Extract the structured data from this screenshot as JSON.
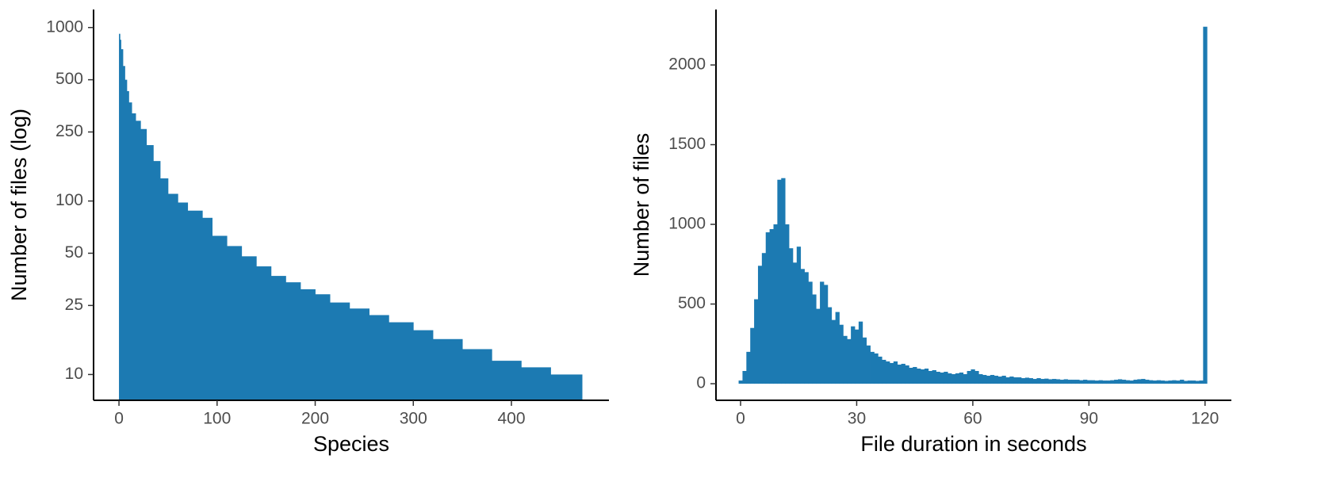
{
  "chart_data": [
    {
      "type": "histogram",
      "xlabel": "Species",
      "ylabel": "Number of files (log)",
      "color": "#1c7ab2",
      "log_y": true,
      "bins": [
        0,
        1,
        2,
        4,
        6,
        8,
        10,
        13,
        17,
        22,
        28,
        35,
        42,
        50,
        60,
        70,
        85,
        95,
        110,
        125,
        140,
        155,
        170,
        185,
        200,
        215,
        235,
        255,
        275,
        300,
        320,
        350,
        380,
        410,
        440,
        472
      ],
      "values": [
        920,
        850,
        750,
        600,
        500,
        430,
        370,
        320,
        290,
        260,
        210,
        170,
        135,
        110,
        98,
        88,
        80,
        63,
        55,
        48,
        42,
        37,
        34,
        31,
        29,
        26,
        24,
        22,
        20,
        18,
        16,
        14,
        12,
        11,
        10
      ],
      "xlim": [
        -25.9,
        499.4
      ],
      "xticks": [
        0,
        100,
        200,
        300,
        400
      ],
      "ylim": [
        7.1,
        1270
      ],
      "yticks": [
        10,
        25,
        50,
        100,
        250,
        500,
        1000
      ]
    },
    {
      "type": "histogram",
      "xlabel": "File duration in seconds",
      "ylabel": "Number of files",
      "color": "#1c7ab2",
      "log_y": false,
      "bins": [
        -0.5,
        0.5,
        1.5,
        2.5,
        3.5,
        4.5,
        5.5,
        6.5,
        7.5,
        8.5,
        9.5,
        10.5,
        11.5,
        12.5,
        13.5,
        14.5,
        15.5,
        16.5,
        17.5,
        18.5,
        19.5,
        20.5,
        21.5,
        22.5,
        23.5,
        24.5,
        25.5,
        26.5,
        27.5,
        28.5,
        29.5,
        30.5,
        31.5,
        32.5,
        33.5,
        34.5,
        35.5,
        36.5,
        37.5,
        38.5,
        39.5,
        40.5,
        41.5,
        42.5,
        43.5,
        44.5,
        45.5,
        46.5,
        47.5,
        48.5,
        49.5,
        50.5,
        51.5,
        52.5,
        53.5,
        54.5,
        55.5,
        56.5,
        57.5,
        58.5,
        59.5,
        60.5,
        61.5,
        62.5,
        63.5,
        64.5,
        65.5,
        66.5,
        67.5,
        68.5,
        69.5,
        70.5,
        71.5,
        72.5,
        73.5,
        74.5,
        75.5,
        76.5,
        77.5,
        78.5,
        79.5,
        80.5,
        81.5,
        82.5,
        83.5,
        84.5,
        85.5,
        86.5,
        87.5,
        88.5,
        89.5,
        90.5,
        91.5,
        92.5,
        93.5,
        94.5,
        95.5,
        96.5,
        97.5,
        98.5,
        99.5,
        100.5,
        101.5,
        102.5,
        103.5,
        104.5,
        105.5,
        106.5,
        107.5,
        108.5,
        109.5,
        110.5,
        111.5,
        112.5,
        113.5,
        114.5,
        115.5,
        116.5,
        117.5,
        118.5,
        119.5,
        120.5
      ],
      "values": [
        20,
        80,
        200,
        350,
        530,
        740,
        820,
        950,
        970,
        1000,
        1280,
        1290,
        1000,
        850,
        760,
        860,
        720,
        700,
        640,
        560,
        470,
        640,
        620,
        480,
        400,
        450,
        370,
        300,
        280,
        360,
        340,
        390,
        290,
        240,
        200,
        190,
        170,
        150,
        140,
        130,
        140,
        120,
        125,
        115,
        100,
        105,
        95,
        90,
        95,
        80,
        85,
        75,
        70,
        75,
        65,
        60,
        65,
        70,
        60,
        80,
        90,
        80,
        60,
        55,
        50,
        55,
        50,
        45,
        50,
        40,
        45,
        40,
        40,
        35,
        38,
        35,
        30,
        35,
        30,
        32,
        28,
        30,
        28,
        25,
        28,
        25,
        25,
        25,
        22,
        25,
        22,
        22,
        20,
        22,
        20,
        20,
        22,
        25,
        28,
        25,
        22,
        20,
        25,
        28,
        30,
        25,
        22,
        20,
        22,
        20,
        18,
        20,
        22,
        20,
        25,
        18,
        20,
        20,
        18,
        20,
        2240
      ],
      "xlim": [
        -6.35,
        126.8
      ],
      "xticks": [
        0,
        30,
        60,
        90,
        120
      ],
      "ylim": [
        -104,
        2348
      ],
      "yticks": [
        0,
        500,
        1000,
        1500,
        2000
      ]
    }
  ]
}
